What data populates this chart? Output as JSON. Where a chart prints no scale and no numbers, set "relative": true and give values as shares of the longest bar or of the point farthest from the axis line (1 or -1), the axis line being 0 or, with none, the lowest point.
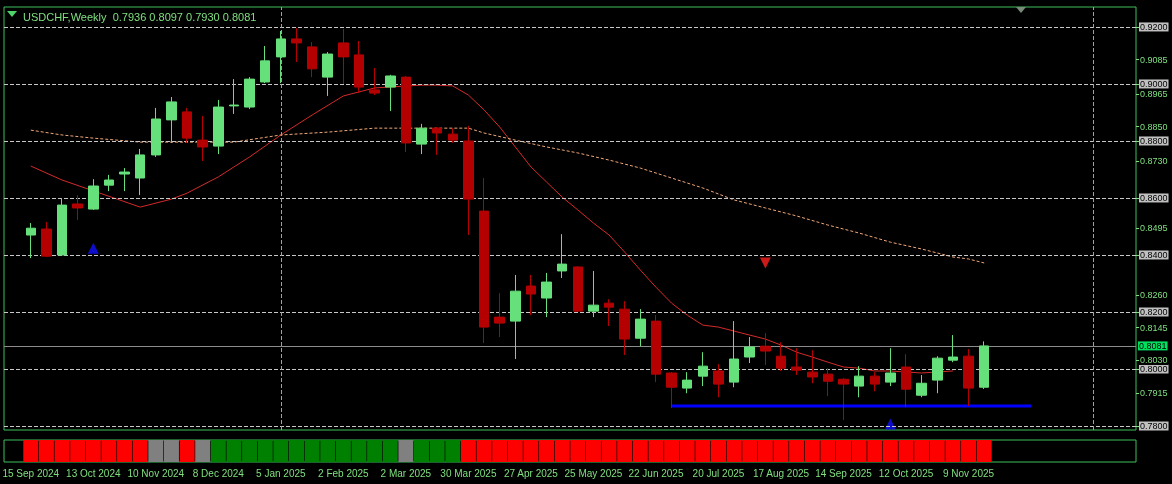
{
  "chart_data": [
    {
      "type": "candlestick",
      "title": "USDCHF,Weekly  0.7936 0.8097 0.7930 0.8081",
      "x": [
        "2024-09-15",
        "2024-09-22",
        "2024-09-29",
        "2024-10-06",
        "2024-10-13",
        "2024-10-20",
        "2024-10-27",
        "2024-11-03",
        "2024-11-10",
        "2024-11-17",
        "2024-11-24",
        "2024-12-01",
        "2024-12-08",
        "2024-12-15",
        "2024-12-22",
        "2024-12-29",
        "2025-01-05",
        "2025-01-12",
        "2025-01-19",
        "2025-01-26",
        "2025-02-02",
        "2025-02-09",
        "2025-02-16",
        "2025-02-23",
        "2025-03-02",
        "2025-03-09",
        "2025-03-16",
        "2025-03-23",
        "2025-03-30",
        "2025-04-06",
        "2025-04-13",
        "2025-04-20",
        "2025-04-27",
        "2025-05-04",
        "2025-05-11",
        "2025-05-18",
        "2025-05-25",
        "2025-06-01",
        "2025-06-08",
        "2025-06-15",
        "2025-06-22",
        "2025-06-29",
        "2025-07-06",
        "2025-07-13",
        "2025-07-20",
        "2025-07-27",
        "2025-08-03",
        "2025-08-10",
        "2025-08-17",
        "2025-08-24",
        "2025-08-31",
        "2025-09-07",
        "2025-09-14",
        "2025-09-21",
        "2025-09-28",
        "2025-10-05",
        "2025-10-12",
        "2025-10-19",
        "2025-10-26",
        "2025-11-02",
        "2025-11-09",
        "2025-11-16"
      ],
      "ohlc": [
        [
          0.847,
          0.8512,
          0.8389,
          0.8494
        ],
        [
          0.8491,
          0.8516,
          0.8393,
          0.8396
        ],
        [
          0.84,
          0.86,
          0.8398,
          0.8575
        ],
        [
          0.8579,
          0.861,
          0.8523,
          0.8565
        ],
        [
          0.8561,
          0.8666,
          0.8558,
          0.8642
        ],
        [
          0.8645,
          0.8681,
          0.8624,
          0.8663
        ],
        [
          0.8684,
          0.8705,
          0.8624,
          0.8691
        ],
        [
          0.867,
          0.8772,
          0.861,
          0.8751
        ],
        [
          0.8751,
          0.8916,
          0.8744,
          0.8877
        ],
        [
          0.8874,
          0.8954,
          0.8793,
          0.8937
        ],
        [
          0.8902,
          0.8916,
          0.8793,
          0.881
        ],
        [
          0.8803,
          0.8888,
          0.873,
          0.8779
        ],
        [
          0.8782,
          0.8944,
          0.8754,
          0.8919
        ],
        [
          0.8923,
          0.9017,
          0.8895,
          0.8926
        ],
        [
          0.8919,
          0.9024,
          0.8912,
          0.9017
        ],
        [
          0.9007,
          0.9133,
          0.9003,
          0.9081
        ],
        [
          0.9095,
          0.9186,
          0.9003,
          0.9158
        ],
        [
          0.9158,
          0.9196,
          0.9077,
          0.9144
        ],
        [
          0.913,
          0.9147,
          0.9024,
          0.9053
        ],
        [
          0.9024,
          0.9112,
          0.8958,
          0.9105
        ],
        [
          0.9144,
          0.9193,
          0.9,
          0.9095
        ],
        [
          0.9102,
          0.9151,
          0.8968,
          0.8989
        ],
        [
          0.8979,
          0.9056,
          0.8961,
          0.8968
        ],
        [
          0.8989,
          0.9032,
          0.8905,
          0.9028
        ],
        [
          0.9024,
          0.9028,
          0.8761,
          0.8793
        ],
        [
          0.8789,
          0.886,
          0.8754,
          0.8845
        ],
        [
          0.8845,
          0.8849,
          0.8751,
          0.8828
        ],
        [
          0.8824,
          0.8845,
          0.8793,
          0.8803
        ],
        [
          0.88,
          0.8853,
          0.847,
          0.8596
        ],
        [
          0.8554,
          0.867,
          0.8091,
          0.8147
        ],
        [
          0.8182,
          0.8266,
          0.8112,
          0.8161
        ],
        [
          0.8168,
          0.833,
          0.8035,
          0.8273
        ],
        [
          0.8291,
          0.833,
          0.8189,
          0.8263
        ],
        [
          0.8249,
          0.8337,
          0.8182,
          0.8305
        ],
        [
          0.8344,
          0.8473,
          0.8319,
          0.8368
        ],
        [
          0.8358,
          0.8361,
          0.82,
          0.8203
        ],
        [
          0.8203,
          0.8344,
          0.8182,
          0.8224
        ],
        [
          0.8231,
          0.8245,
          0.8151,
          0.8217
        ],
        [
          0.821,
          0.8238,
          0.8049,
          0.8105
        ],
        [
          0.8108,
          0.821,
          0.808,
          0.8175
        ],
        [
          0.8168,
          0.8189,
          0.7954,
          0.7982
        ],
        [
          0.7986,
          0.7989,
          0.7863,
          0.7936
        ],
        [
          0.7933,
          0.7989,
          0.7915,
          0.7961
        ],
        [
          0.7975,
          0.8059,
          0.794,
          0.801
        ],
        [
          0.7993,
          0.8017,
          0.7901,
          0.7947
        ],
        [
          0.7954,
          0.8168,
          0.7936,
          0.8035
        ],
        [
          0.8042,
          0.8112,
          0.8021,
          0.8077
        ],
        [
          0.808,
          0.8126,
          0.8014,
          0.8063
        ],
        [
          0.8045,
          0.8094,
          0.7993,
          0.8003
        ],
        [
          0.8007,
          0.8073,
          0.7979,
          0.7996
        ],
        [
          0.7989,
          0.8066,
          0.795,
          0.7972
        ],
        [
          0.7982,
          0.8003,
          0.7905,
          0.7957
        ],
        [
          0.7964,
          0.7968,
          0.7821,
          0.7947
        ],
        [
          0.794,
          0.801,
          0.7901,
          0.7975
        ],
        [
          0.7975,
          0.7989,
          0.7922,
          0.7947
        ],
        [
          0.7954,
          0.8073,
          0.794,
          0.7986
        ],
        [
          0.8007,
          0.8052,
          0.7866,
          0.7929
        ],
        [
          0.7908,
          0.7979,
          0.7901,
          0.795
        ],
        [
          0.7961,
          0.8045,
          0.7915,
          0.8038
        ],
        [
          0.8031,
          0.8119,
          0.8024,
          0.8042
        ],
        [
          0.8045,
          0.807,
          0.787,
          0.7933
        ],
        [
          0.7936,
          0.8097,
          0.793,
          0.8081
        ]
      ],
      "colors": [
        "#66e07a",
        "#b40000",
        "#66e07a",
        "#b40000",
        "#66e07a",
        "#66e07a",
        "#66e07a",
        "#66e07a",
        "#66e07a",
        "#66e07a",
        "#b40000",
        "#b40000",
        "#66e07a",
        "#66e07a",
        "#66e07a",
        "#66e07a",
        "#66e07a",
        "#b40000",
        "#b40000",
        "#66e07a",
        "#b40000",
        "#b40000",
        "#b40000",
        "#66e07a",
        "#b40000",
        "#66e07a",
        "#b40000",
        "#b40000",
        "#b40000",
        "#b40000",
        "#b40000",
        "#66e07a",
        "#b40000",
        "#66e07a",
        "#66e07a",
        "#b40000",
        "#66e07a",
        "#b40000",
        "#b40000",
        "#66e07a",
        "#b40000",
        "#b40000",
        "#66e07a",
        "#66e07a",
        "#b40000",
        "#66e07a",
        "#66e07a",
        "#b40000",
        "#b40000",
        "#b40000",
        "#b40000",
        "#b40000",
        "#b40000",
        "#66e07a",
        "#b40000",
        "#66e07a",
        "#b40000",
        "#66e07a",
        "#66e07a",
        "#66e07a",
        "#b40000",
        "#66e07a"
      ],
      "series": [
        {
          "type": "line",
          "color": "#d42a2a",
          "line_style": "solid",
          "x": [
            "2024-09-15",
            "2024-09-29",
            "2024-11-03",
            "2024-11-17",
            "2024-11-24",
            "2024-12-08",
            "2024-12-22",
            "2025-01-05",
            "2025-01-19",
            "2025-02-02",
            "2025-02-16",
            "2025-03-09",
            "2025-03-16",
            "2025-03-23",
            "2025-03-30",
            "2025-04-06",
            "2025-04-13",
            "2025-04-20",
            "2025-04-27",
            "2025-05-04",
            "2025-05-11",
            "2025-05-18",
            "2025-05-25",
            "2025-06-01",
            "2025-06-08",
            "2025-06-15",
            "2025-06-22",
            "2025-06-29",
            "2025-07-06",
            "2025-07-13",
            "2025-07-20",
            "2025-07-27",
            "2025-08-03",
            "2025-08-10",
            "2025-08-17",
            "2025-08-24",
            "2025-08-31",
            "2025-09-07",
            "2025-09-14",
            "2025-09-21",
            "2025-09-28",
            "2025-10-05",
            "2025-10-19",
            "2025-11-02"
          ],
          "values": [
            0.8712,
            0.8663,
            0.8568,
            0.8596,
            0.8617,
            0.8674,
            0.8744,
            0.8821,
            0.8891,
            0.8958,
            0.8986,
            0.8996,
            0.8996,
            0.8993,
            0.8961,
            0.8909,
            0.8849,
            0.8779,
            0.8709,
            0.8656,
            0.8603,
            0.8558,
            0.8512,
            0.847,
            0.841,
            0.8347,
            0.8287,
            0.8231,
            0.8189,
            0.8154,
            0.8147,
            0.8133,
            0.8119,
            0.8105,
            0.8084,
            0.8059,
            0.8042,
            0.8024,
            0.8007,
            0.8003,
            0.7993,
            0.7993,
            0.7986,
            0.7993
          ]
        },
        {
          "type": "line",
          "color": "#f0a878",
          "line_style": "dashed",
          "x": [
            "2024-09-15",
            "2024-09-29",
            "2024-10-13",
            "2024-11-03",
            "2024-11-24",
            "2024-12-15",
            "2025-01-05",
            "2025-01-26",
            "2025-02-16",
            "2025-03-23",
            "2025-03-30",
            "2025-04-06",
            "2025-04-20",
            "2025-05-04",
            "2025-05-18",
            "2025-06-01",
            "2025-06-15",
            "2025-06-29",
            "2025-07-13",
            "2025-07-27",
            "2025-08-10",
            "2025-08-24",
            "2025-09-07",
            "2025-09-21",
            "2025-10-05",
            "2025-10-19",
            "2025-11-02",
            "2025-11-09",
            "2025-11-16"
          ],
          "values": [
            0.8838,
            0.8821,
            0.881,
            0.8796,
            0.8796,
            0.8796,
            0.8821,
            0.8831,
            0.8845,
            0.8845,
            0.8845,
            0.8828,
            0.8803,
            0.8779,
            0.8758,
            0.8733,
            0.8705,
            0.867,
            0.8635,
            0.8593,
            0.8565,
            0.8537,
            0.8505,
            0.8477,
            0.8445,
            0.8421,
            0.8393,
            0.8386,
            0.8372
          ]
        },
        {
          "type": "line",
          "color": "#0000ff",
          "line_style": "solid",
          "x": [
            "2025-06-29",
            "2025-12-07"
          ],
          "values": [
            0.787,
            0.787
          ]
        },
        {
          "type": "scatter",
          "color": "#1010ff",
          "marker": "triangle",
          "x": [
            "2024-10-13",
            "2025-10-05"
          ],
          "values": [
            0.8424,
            0.7807
          ]
        },
        {
          "type": "scatter",
          "color": "#ff2020",
          "marker": "triangle",
          "x": [
            "2025-08-10"
          ],
          "values": [
            0.8372
          ]
        }
      ],
      "xlim": [
        "2024-09-03",
        "2026-01-23"
      ],
      "ylim": [
        0.7786,
        0.927
      ],
      "yticks": [
        {
          "value": 0.78,
          "label": "0.7800"
        },
        {
          "value": 0.7915,
          "label": "0.7915"
        },
        {
          "value": 0.8,
          "label": "0.8000"
        },
        {
          "value": 0.803,
          "label": "0.8030"
        },
        {
          "value": 0.8145,
          "label": "0.8145"
        },
        {
          "value": 0.82,
          "label": "0.8200"
        },
        {
          "value": 0.826,
          "label": "0.8260"
        },
        {
          "value": 0.84,
          "label": "0.8400"
        },
        {
          "value": 0.8495,
          "label": "0.8495"
        },
        {
          "value": 0.86,
          "label": "0.8600"
        },
        {
          "value": 0.873,
          "label": "0.8730"
        },
        {
          "value": 0.88,
          "label": "0.8800"
        },
        {
          "value": 0.885,
          "label": "0.8850"
        },
        {
          "value": 0.8965,
          "label": "0.8965"
        },
        {
          "value": 0.9,
          "label": "0.9000"
        },
        {
          "value": 0.9085,
          "label": "0.9085"
        },
        {
          "value": 0.92,
          "label": "0.9200"
        }
      ],
      "ref_lines": [
        {
          "axis": "y",
          "value": 0.92,
          "color": "#c8c8c8",
          "line_style": "dashed"
        },
        {
          "axis": "y",
          "value": 0.9,
          "color": "#c8c8c8",
          "line_style": "dashed"
        },
        {
          "axis": "y",
          "value": 0.88,
          "color": "#c8c8c8",
          "line_style": "dashed"
        },
        {
          "axis": "y",
          "value": 0.86,
          "color": "#c8c8c8",
          "line_style": "dashed"
        },
        {
          "axis": "y",
          "value": 0.84,
          "color": "#c8c8c8",
          "line_style": "dashed"
        },
        {
          "axis": "y",
          "value": 0.82,
          "color": "#c8c8c8",
          "line_style": "dashed"
        },
        {
          "axis": "y",
          "value": 0.8,
          "color": "#c8c8c8",
          "line_style": "dashed"
        },
        {
          "axis": "y",
          "value": 0.78,
          "color": "#c8c8c8",
          "line_style": "dashed"
        },
        {
          "axis": "y",
          "value": 0.8081,
          "label": "0.8081",
          "color": "#8c8c8c",
          "line_style": "solid"
        },
        {
          "axis": "x",
          "value": "2025-01-05",
          "color": "#4fd46a",
          "line_style": "dashed"
        },
        {
          "axis": "x",
          "value": "2026-01-04",
          "color": "#4fd46a",
          "line_style": "dashed"
        }
      ],
      "xticks": [
        {
          "value": "2024-09-15",
          "label": "15 Sep 2024"
        },
        {
          "value": "2024-10-13",
          "label": "13 Oct 2024"
        },
        {
          "value": "2024-11-10",
          "label": "10 Nov 2024"
        },
        {
          "value": "2024-12-08",
          "label": "8 Dec 2024"
        },
        {
          "value": "2025-01-05",
          "label": "5 Jan 2025"
        },
        {
          "value": "2025-02-02",
          "label": "2 Feb 2025"
        },
        {
          "value": "2025-03-02",
          "label": "2 Mar 2025"
        },
        {
          "value": "2025-03-30",
          "label": "30 Mar 2025"
        },
        {
          "value": "2025-04-27",
          "label": "27 Apr 2025"
        },
        {
          "value": "2025-05-25",
          "label": "25 May 2025"
        },
        {
          "value": "2025-06-22",
          "label": "22 Jun 2025"
        },
        {
          "value": "2025-07-20",
          "label": "20 Jul 2025"
        },
        {
          "value": "2025-08-17",
          "label": "17 Aug 2025"
        },
        {
          "value": "2025-09-14",
          "label": "14 Sep 2025"
        },
        {
          "value": "2025-10-12",
          "label": "12 Oct 2025"
        },
        {
          "value": "2025-11-09",
          "label": "9 Nov 2025"
        }
      ]
    },
    {
      "type": "bar",
      "relative": true,
      "x": [
        "2024-09-15",
        "2024-09-22",
        "2024-09-29",
        "2024-10-06",
        "2024-10-13",
        "2024-10-20",
        "2024-10-27",
        "2024-11-03",
        "2024-11-10",
        "2024-11-17",
        "2024-11-24",
        "2024-12-01",
        "2024-12-08",
        "2024-12-15",
        "2024-12-22",
        "2024-12-29",
        "2025-01-05",
        "2025-01-12",
        "2025-01-19",
        "2025-01-26",
        "2025-02-02",
        "2025-02-09",
        "2025-02-16",
        "2025-02-23",
        "2025-03-02",
        "2025-03-09",
        "2025-03-16",
        "2025-03-23",
        "2025-03-30",
        "2025-04-06",
        "2025-04-13",
        "2025-04-20",
        "2025-04-27",
        "2025-05-04",
        "2025-05-11",
        "2025-05-18",
        "2025-05-25",
        "2025-06-01",
        "2025-06-08",
        "2025-06-15",
        "2025-06-22",
        "2025-06-29",
        "2025-07-06",
        "2025-07-13",
        "2025-07-20",
        "2025-07-27",
        "2025-08-03",
        "2025-08-10",
        "2025-08-17",
        "2025-08-24",
        "2025-08-31",
        "2025-09-07",
        "2025-09-14",
        "2025-09-21",
        "2025-09-28",
        "2025-10-05",
        "2025-10-12",
        "2025-10-19",
        "2025-10-26",
        "2025-11-02",
        "2025-11-09",
        "2025-11-16"
      ],
      "values": [
        1,
        1,
        1,
        1,
        1,
        1,
        1,
        1,
        1,
        1,
        1,
        1,
        1,
        1,
        1,
        1,
        1,
        1,
        1,
        1,
        1,
        1,
        1,
        1,
        1,
        1,
        1,
        1,
        1,
        1,
        1,
        1,
        1,
        1,
        1,
        1,
        1,
        1,
        1,
        1,
        1,
        1,
        1,
        1,
        1,
        1,
        1,
        1,
        1,
        1,
        1,
        1,
        1,
        1,
        1,
        1,
        1,
        1,
        1,
        1,
        1,
        1
      ],
      "colors": [
        "#ff0000",
        "#ff0000",
        "#ff0000",
        "#ff0000",
        "#ff0000",
        "#ff0000",
        "#ff0000",
        "#ff0000",
        "#808080",
        "#808080",
        "#ff0000",
        "#808080",
        "#008000",
        "#008000",
        "#008000",
        "#008000",
        "#008000",
        "#008000",
        "#008000",
        "#008000",
        "#008000",
        "#008000",
        "#008000",
        "#008000",
        "#808080",
        "#008000",
        "#008000",
        "#008000",
        "#ff0000",
        "#ff0000",
        "#ff0000",
        "#ff0000",
        "#ff0000",
        "#ff0000",
        "#ff0000",
        "#ff0000",
        "#ff0000",
        "#ff0000",
        "#ff0000",
        "#ff0000",
        "#ff0000",
        "#ff0000",
        "#ff0000",
        "#ff0000",
        "#ff0000",
        "#ff0000",
        "#ff0000",
        "#ff0000",
        "#ff0000",
        "#ff0000",
        "#ff0000",
        "#ff0000",
        "#ff0000",
        "#ff0000",
        "#ff0000",
        "#ff0000",
        "#ff0000",
        "#ff0000",
        "#ff0000",
        "#ff0000",
        "#ff0000",
        "#ff0000"
      ],
      "xlim": [
        "2024-09-03",
        "2026-01-23"
      ]
    }
  ]
}
